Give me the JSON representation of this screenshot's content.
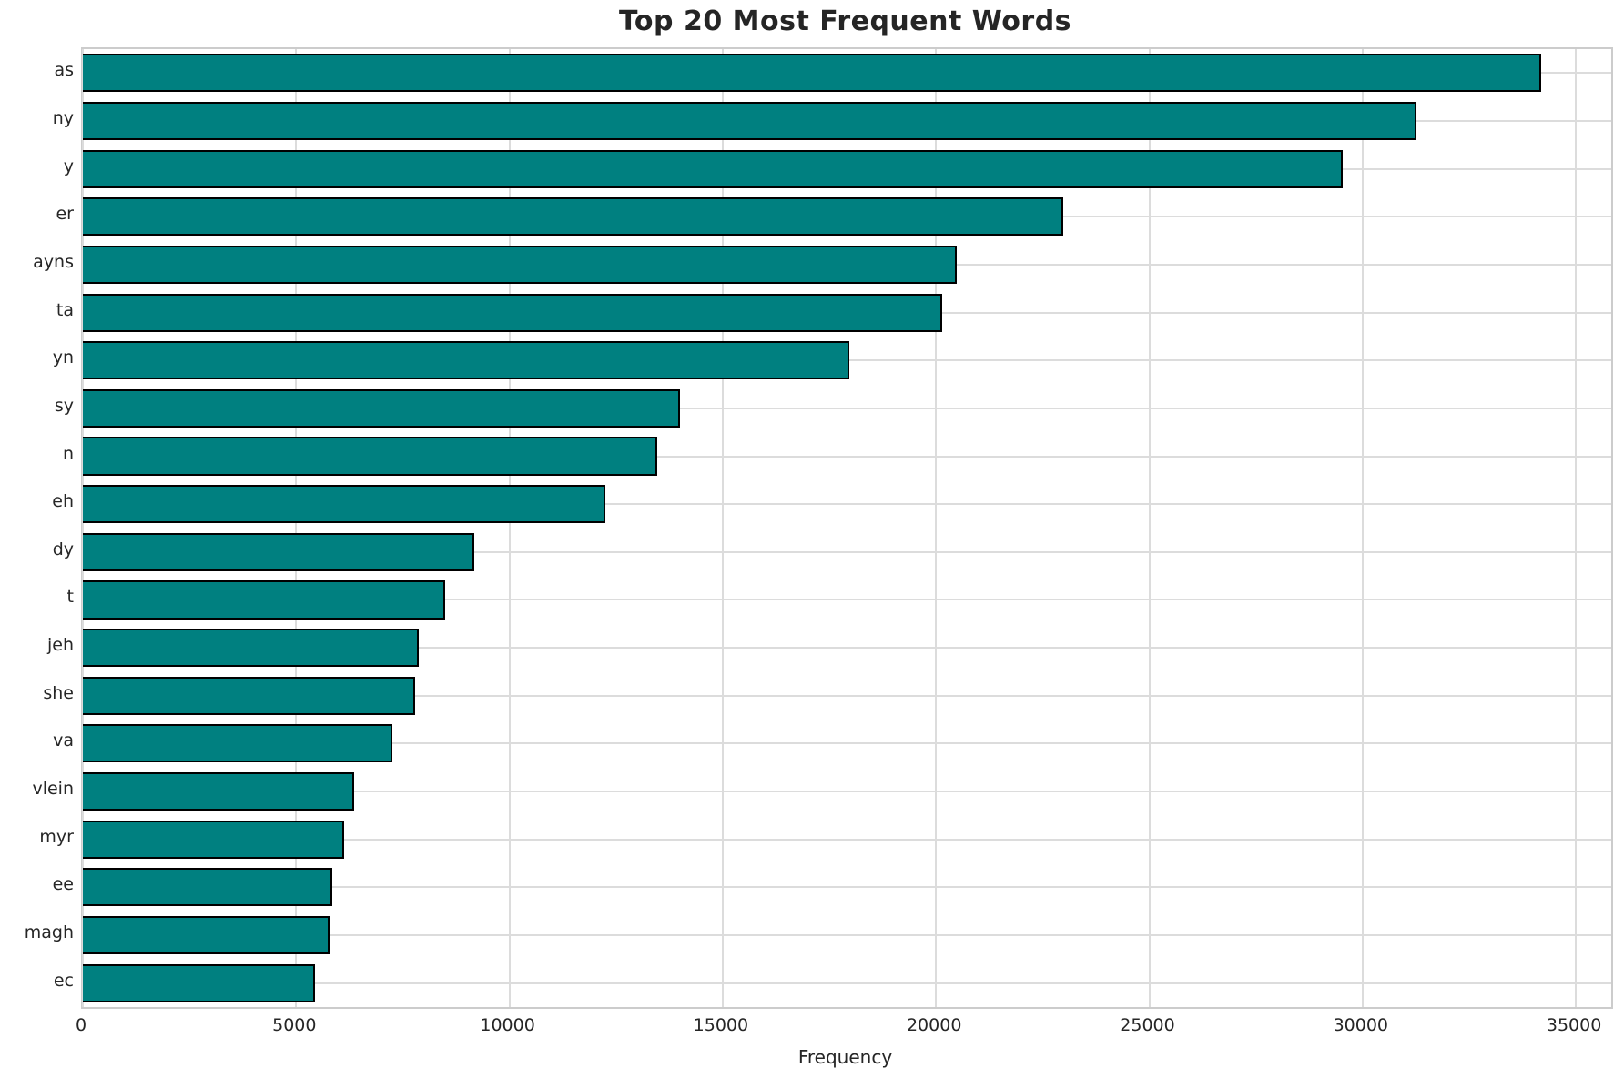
{
  "chart_data": {
    "type": "bar",
    "orientation": "horizontal",
    "title": "Top 20 Most Frequent Words",
    "xlabel": "Frequency",
    "ylabel": "",
    "categories": [
      "as",
      "ny",
      "y",
      "er",
      "ayns",
      "ta",
      "yn",
      "sy",
      "n",
      "eh",
      "dy",
      "t",
      "jeh",
      "she",
      "va",
      "vlein",
      "myr",
      "ee",
      "magh",
      "ec"
    ],
    "values": [
      34180,
      31260,
      29530,
      22980,
      20490,
      20140,
      17970,
      13990,
      13470,
      12240,
      9180,
      8500,
      7880,
      7780,
      7260,
      6370,
      6120,
      5840,
      5780,
      5440
    ],
    "xticks": [
      0,
      5000,
      10000,
      15000,
      20000,
      25000,
      30000,
      35000
    ],
    "xlim": [
      0,
      35830
    ],
    "grid": true,
    "legend": false,
    "colors": {
      "bar_fill": "#008080",
      "bar_edge": "#000000",
      "grid_line": "#dcdcdc",
      "spine": "#cccccc",
      "text": "#262626"
    }
  }
}
